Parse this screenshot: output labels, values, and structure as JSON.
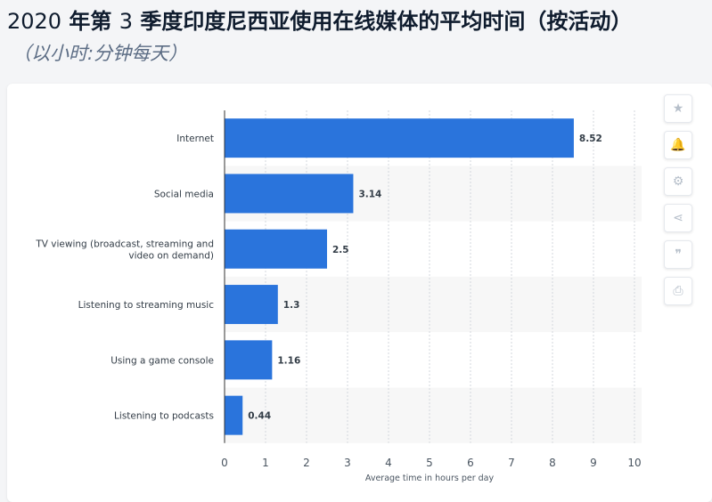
{
  "header": {
    "title_prefix": "2020",
    "title_main": " 年第 ",
    "title_num": "3",
    "title_rest": " 季度印度尼西亚使用在线媒体的平均时间（按活动）",
    "subtitle": "（以小时:分钟每天）"
  },
  "toolbar": {
    "items": [
      {
        "name": "star-icon",
        "glyph": "★"
      },
      {
        "name": "bell-icon",
        "glyph": "🔔"
      },
      {
        "name": "gear-icon",
        "glyph": "⚙"
      },
      {
        "name": "share-icon",
        "glyph": "⋖"
      },
      {
        "name": "quote-icon",
        "glyph": "❞"
      },
      {
        "name": "print-icon",
        "glyph": "⎙"
      }
    ]
  },
  "chart_data": {
    "type": "bar",
    "orientation": "horizontal",
    "categories": [
      [
        "Internet"
      ],
      [
        "Social media"
      ],
      [
        "TV viewing (broadcast, streaming and",
        "video on demand)"
      ],
      [
        "Listening to streaming music"
      ],
      [
        "Using a game console"
      ],
      [
        "Listening to podcasts"
      ]
    ],
    "values": [
      8.52,
      3.14,
      2.5,
      1.3,
      1.16,
      0.44
    ],
    "value_labels": [
      "8.52",
      "3.14",
      "2.5",
      "1.3",
      "1.16",
      "0.44"
    ],
    "xlabel": "Average time in hours per day",
    "xlim": [
      0,
      10
    ],
    "xticks": [
      0,
      1,
      2,
      3,
      4,
      5,
      6,
      7,
      8,
      9,
      10
    ],
    "grid": true,
    "bar_color": "#2a74dc",
    "stripe_color": "#f7f7f7"
  }
}
